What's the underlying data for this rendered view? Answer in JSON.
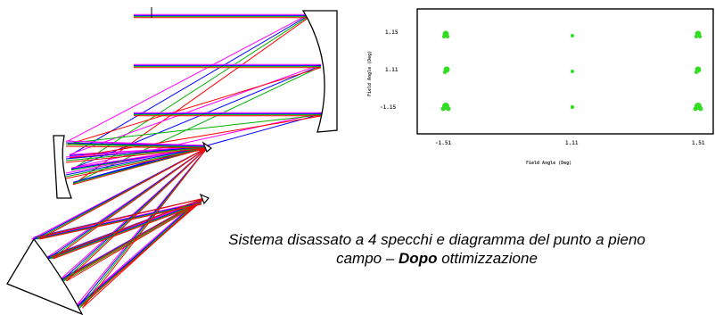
{
  "colors": {
    "ray_colors": [
      "#ff00ff",
      "#0000ff",
      "#00b000",
      "#ff0000"
    ],
    "mirror_stroke": "#000000",
    "spot_color": "#33dd22",
    "panel_border": "#000000"
  },
  "spot_diagram": {
    "y_tick_labels": [
      "1.15",
      "1.11",
      "-1.15"
    ],
    "x_tick_labels": [
      "-1.51",
      "1.11",
      "1.51"
    ],
    "x_axis_label": "Field Angle (Deg)",
    "y_axis_label": "Field Angle (Deg)"
  },
  "caption": {
    "line1": "Sistema disassato a 4 specchi e diagramma del punto a pieno",
    "line2_prefix": "campo – ",
    "line2_bold": "Dopo",
    "line2_suffix": " ottimizzazione"
  }
}
